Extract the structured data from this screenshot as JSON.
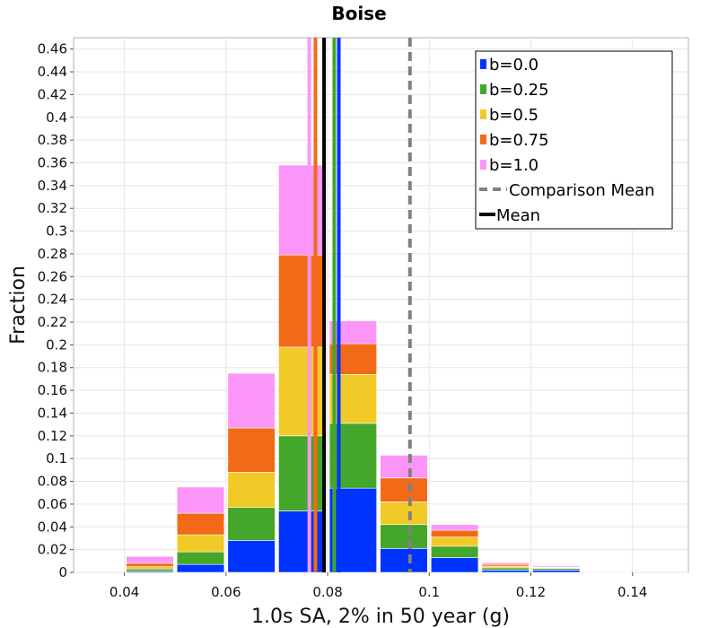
{
  "chart_data": {
    "type": "bar",
    "stacked": true,
    "title": "Boise",
    "xlabel": "1.0s SA, 2% in 50 year (g)",
    "ylabel": "Fraction",
    "xlim": [
      0.03,
      0.151
    ],
    "ylim": [
      0,
      0.47
    ],
    "x_ticks": [
      0.04,
      0.06,
      0.08,
      0.1,
      0.12,
      0.14
    ],
    "x_tick_labels": [
      "0.04",
      "0.06",
      "0.08",
      "0.1",
      "0.12",
      "0.14"
    ],
    "y_ticks": [
      0,
      0.02,
      0.04,
      0.06,
      0.08,
      0.1,
      0.12,
      0.14,
      0.16,
      0.18,
      0.2,
      0.22,
      0.24,
      0.26,
      0.28,
      0.3,
      0.32,
      0.34,
      0.36,
      0.38,
      0.4,
      0.42,
      0.44,
      0.46
    ],
    "y_tick_labels": [
      "0",
      "0.02",
      "0.04",
      "0.06",
      "0.08",
      "0.1",
      "0.12",
      "0.14",
      "0.16",
      "0.18",
      "0.2",
      "0.22",
      "0.24",
      "0.26",
      "0.28",
      "0.3",
      "0.32",
      "0.34",
      "0.36",
      "0.38",
      "0.4",
      "0.42",
      "0.44",
      "0.46"
    ],
    "bin_width": 0.01,
    "bins": [
      0.045,
      0.055,
      0.065,
      0.075,
      0.085,
      0.095,
      0.105,
      0.115,
      0.125,
      0.135
    ],
    "series": [
      {
        "name": "b=0.0",
        "color": "#0033ff",
        "values": [
          0.001,
          0.007,
          0.028,
          0.054,
          0.074,
          0.021,
          0.013,
          0.002,
          0.002,
          0.0005
        ]
      },
      {
        "name": "b=0.25",
        "color": "#44a62a",
        "values": [
          0.002,
          0.011,
          0.029,
          0.066,
          0.057,
          0.021,
          0.01,
          0.002,
          0.0015,
          0.0005
        ]
      },
      {
        "name": "b=0.5",
        "color": "#f2ca27",
        "values": [
          0.002,
          0.015,
          0.031,
          0.078,
          0.043,
          0.02,
          0.008,
          0.0015,
          0.0005,
          0.0003
        ]
      },
      {
        "name": "b=0.75",
        "color": "#f26a18",
        "values": [
          0.003,
          0.019,
          0.039,
          0.081,
          0.027,
          0.021,
          0.006,
          0.0015,
          0.0005,
          0.0003
        ]
      },
      {
        "name": "b=1.0",
        "color": "#fb96f8",
        "values": [
          0.006,
          0.023,
          0.048,
          0.079,
          0.02,
          0.02,
          0.005,
          0.0015,
          0.001,
          0.0004
        ]
      }
    ],
    "mean_lines": [
      {
        "name": "b=0.0",
        "x": 0.0822,
        "color": "#0033ff"
      },
      {
        "name": "b=0.25",
        "x": 0.0813,
        "color": "#44a62a"
      },
      {
        "name": "b=0.75",
        "x": 0.0776,
        "color": "#f26a18"
      },
      {
        "name": "b=1.0",
        "x": 0.0764,
        "color": "#fb96f8"
      }
    ],
    "comparison_mean": 0.0962,
    "overall_mean": 0.0793,
    "legend": {
      "placement": "top-right",
      "entries": [
        {
          "label": "b=0.0",
          "kind": "box",
          "color": "#0033ff"
        },
        {
          "label": "b=0.25",
          "kind": "box",
          "color": "#44a62a"
        },
        {
          "label": "b=0.5",
          "kind": "box",
          "color": "#f2ca27"
        },
        {
          "label": "b=0.75",
          "kind": "box",
          "color": "#f26a18"
        },
        {
          "label": "b=1.0",
          "kind": "box",
          "color": "#fb96f8"
        },
        {
          "label": "Comparison Mean",
          "kind": "dash",
          "color": "#808080"
        },
        {
          "label": "Mean",
          "kind": "line",
          "color": "#000000"
        }
      ]
    },
    "grid": true
  }
}
